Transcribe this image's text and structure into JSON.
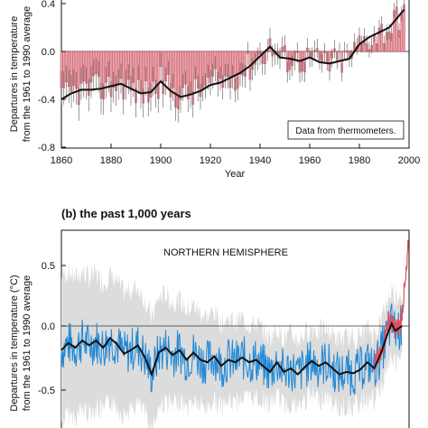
{
  "chart_data": [
    {
      "type": "bar",
      "title": "",
      "xlabel": "Year",
      "ylabel_line1": "Departures in temperature",
      "ylabel_line2": "from the 1961 to 1990 average",
      "xlim": [
        1860,
        2000
      ],
      "ylim": [
        -0.8,
        0.4
      ],
      "xticks": [
        "1860",
        "1880",
        "1900",
        "1920",
        "1940",
        "1960",
        "1980",
        "2000"
      ],
      "yticks": [
        "0.4",
        "0.0",
        "-0.4",
        "-0.8"
      ],
      "annotation": "Data from thermometers.",
      "colors": {
        "bars": "#e9a7ae",
        "bar_edge": "#c9404f",
        "smooth": "#111111",
        "error": "#555555"
      },
      "smooth_curve": [
        [
          1860,
          -0.4
        ],
        [
          1864,
          -0.35
        ],
        [
          1868,
          -0.32
        ],
        [
          1872,
          -0.32
        ],
        [
          1876,
          -0.31
        ],
        [
          1880,
          -0.29
        ],
        [
          1884,
          -0.27
        ],
        [
          1888,
          -0.31
        ],
        [
          1892,
          -0.35
        ],
        [
          1896,
          -0.34
        ],
        [
          1900,
          -0.25
        ],
        [
          1904,
          -0.33
        ],
        [
          1908,
          -0.38
        ],
        [
          1912,
          -0.36
        ],
        [
          1916,
          -0.33
        ],
        [
          1920,
          -0.28
        ],
        [
          1924,
          -0.26
        ],
        [
          1928,
          -0.22
        ],
        [
          1932,
          -0.18
        ],
        [
          1936,
          -0.12
        ],
        [
          1940,
          -0.04
        ],
        [
          1944,
          0.04
        ],
        [
          1948,
          -0.05
        ],
        [
          1952,
          -0.06
        ],
        [
          1956,
          -0.08
        ],
        [
          1960,
          -0.05
        ],
        [
          1964,
          -0.09
        ],
        [
          1968,
          -0.1
        ],
        [
          1972,
          -0.08
        ],
        [
          1976,
          -0.06
        ],
        [
          1980,
          0.06
        ],
        [
          1984,
          0.12
        ],
        [
          1988,
          0.16
        ],
        [
          1992,
          0.2
        ],
        [
          1996,
          0.3
        ],
        [
          1998,
          0.35
        ]
      ]
    },
    {
      "type": "line",
      "title": "(b) the past 1,000 years",
      "ylabel_line1": "Departures in temperature (°C)",
      "ylabel_line2": "from the 1961 to 1990 average",
      "annotation": "NORTHERN HEMISPHERE",
      "ylim": [
        -0.9,
        0.8
      ],
      "yticks": [
        "0.5",
        "0.0",
        "-0.5"
      ],
      "colors": {
        "proxy": "#1e88d6",
        "smooth": "#111111",
        "band": "#dcdcdc",
        "instrumental": "#e0505f"
      },
      "smooth_curve": [
        [
          1000,
          -0.2
        ],
        [
          1020,
          -0.14
        ],
        [
          1040,
          -0.18
        ],
        [
          1060,
          -0.12
        ],
        [
          1080,
          -0.16
        ],
        [
          1100,
          -0.12
        ],
        [
          1120,
          -0.18
        ],
        [
          1140,
          -0.1
        ],
        [
          1160,
          -0.15
        ],
        [
          1180,
          -0.23
        ],
        [
          1200,
          -0.2
        ],
        [
          1220,
          -0.16
        ],
        [
          1240,
          -0.26
        ],
        [
          1260,
          -0.4
        ],
        [
          1280,
          -0.22
        ],
        [
          1300,
          -0.18
        ],
        [
          1320,
          -0.24
        ],
        [
          1340,
          -0.2
        ],
        [
          1360,
          -0.28
        ],
        [
          1380,
          -0.22
        ],
        [
          1400,
          -0.28
        ],
        [
          1420,
          -0.3
        ],
        [
          1440,
          -0.25
        ],
        [
          1460,
          -0.33
        ],
        [
          1480,
          -0.28
        ],
        [
          1500,
          -0.3
        ],
        [
          1520,
          -0.26
        ],
        [
          1540,
          -0.3
        ],
        [
          1560,
          -0.28
        ],
        [
          1580,
          -0.33
        ],
        [
          1600,
          -0.38
        ],
        [
          1620,
          -0.3
        ],
        [
          1640,
          -0.38
        ],
        [
          1660,
          -0.35
        ],
        [
          1680,
          -0.4
        ],
        [
          1700,
          -0.34
        ],
        [
          1720,
          -0.29
        ],
        [
          1740,
          -0.33
        ],
        [
          1760,
          -0.3
        ],
        [
          1780,
          -0.35
        ],
        [
          1800,
          -0.4
        ],
        [
          1820,
          -0.38
        ],
        [
          1840,
          -0.39
        ],
        [
          1860,
          -0.36
        ],
        [
          1880,
          -0.3
        ],
        [
          1900,
          -0.35
        ],
        [
          1920,
          -0.22
        ],
        [
          1940,
          -0.05
        ],
        [
          1950,
          0.02
        ],
        [
          1960,
          -0.04
        ],
        [
          1980,
          0.0
        ]
      ],
      "instrumental_series": [
        [
          1900,
          -0.3
        ],
        [
          1920,
          -0.25
        ],
        [
          1940,
          0.05
        ],
        [
          1960,
          -0.02
        ],
        [
          1975,
          0.0
        ],
        [
          1985,
          0.25
        ],
        [
          1990,
          0.35
        ],
        [
          1995,
          0.52
        ],
        [
          1998,
          0.68
        ]
      ]
    }
  ]
}
